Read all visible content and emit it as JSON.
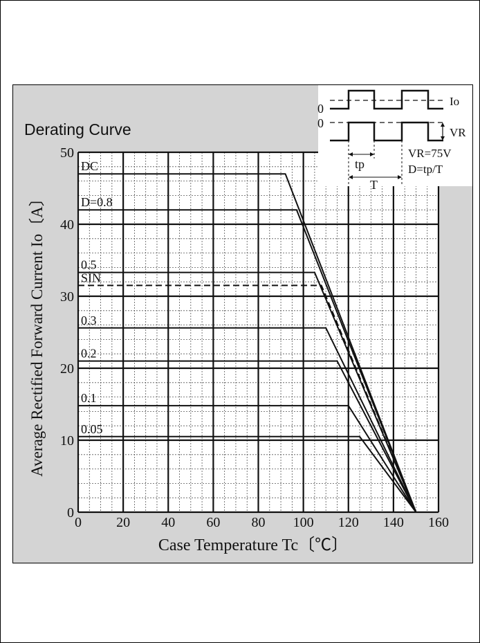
{
  "chart_data": {
    "type": "line",
    "title": "Derating Curve",
    "xlabel": "Case Temperature  Tc〔℃〕",
    "ylabel": "Average Rectified Forward Current  Io〔A〕",
    "xlim": [
      0,
      160
    ],
    "ylim": [
      0,
      50
    ],
    "xticks": [
      0,
      20,
      40,
      60,
      80,
      100,
      120,
      140,
      160
    ],
    "yticks": [
      0,
      10,
      20,
      30,
      40,
      50
    ],
    "grid": true,
    "series": [
      {
        "name": "DC",
        "style": "solid",
        "x": [
          0,
          92,
          150
        ],
        "y": [
          47,
          47,
          0
        ]
      },
      {
        "name": "D=0.8",
        "style": "solid",
        "x": [
          0,
          97,
          150
        ],
        "y": [
          42,
          42,
          0
        ]
      },
      {
        "name": "0.5",
        "style": "solid",
        "x": [
          0,
          105,
          150
        ],
        "y": [
          33.3,
          33.3,
          0
        ]
      },
      {
        "name": "SIN",
        "style": "dashed",
        "x": [
          0,
          108,
          150
        ],
        "y": [
          31.5,
          31.5,
          0
        ]
      },
      {
        "name": "0.3",
        "style": "solid",
        "x": [
          0,
          110,
          150
        ],
        "y": [
          25.6,
          25.6,
          0
        ]
      },
      {
        "name": "0.2",
        "style": "solid",
        "x": [
          0,
          115,
          150
        ],
        "y": [
          21,
          21,
          0
        ]
      },
      {
        "name": "0.1",
        "style": "solid",
        "x": [
          0,
          120,
          150
        ],
        "y": [
          14.8,
          14.8,
          0
        ]
      },
      {
        "name": "0.05",
        "style": "solid",
        "x": [
          0,
          125,
          150
        ],
        "y": [
          10.5,
          10.5,
          0
        ]
      }
    ],
    "inset": {
      "io_label": "Io",
      "vr_label": "VR",
      "zero_top": "0",
      "zero_bottom": "0",
      "tp_label": "tp",
      "t_label": "T",
      "vr_value": "VR=75V",
      "d_formula": "D=tp/T"
    }
  }
}
